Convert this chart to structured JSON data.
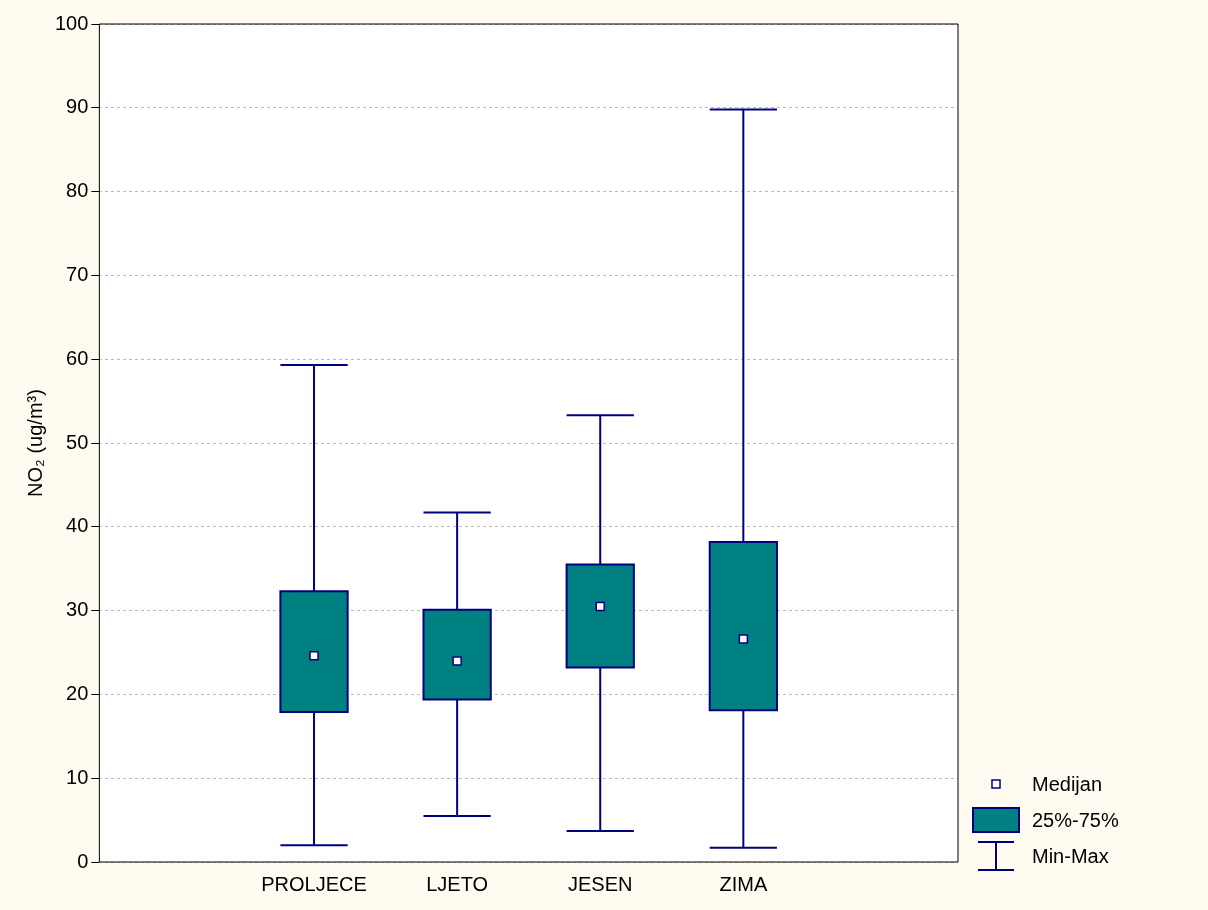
{
  "chart_data": {
    "type": "box",
    "ylabel": "NO₂ (ug/m³)",
    "categories": [
      null,
      "PROLJECE",
      "LJETO",
      "JESEN",
      "ZIMA",
      null
    ],
    "series": [
      {
        "color": "#008080",
        "boxes": [
          null,
          {
            "low": 2,
            "q1": 17.9,
            "median": 24.6,
            "q3": 32.3,
            "high": 59.3
          },
          {
            "low": 5.5,
            "q1": 19.4,
            "median": 24,
            "q3": 30.1,
            "high": 41.7
          },
          {
            "low": 3.7,
            "q1": 23.2,
            "median": 30.5,
            "q3": 35.5,
            "high": 53.3
          },
          {
            "low": 1.7,
            "q1": 18.1,
            "median": 26.6,
            "q3": 38.2,
            "high": 89.8
          },
          null
        ]
      }
    ],
    "ylim": [
      0,
      100
    ],
    "yticks": [
      0,
      10,
      20,
      30,
      40,
      50,
      60,
      70,
      80,
      90,
      100
    ],
    "grid": "y",
    "annotations": [
      "Medijan",
      "25%-75%",
      "Min-Max"
    ]
  }
}
